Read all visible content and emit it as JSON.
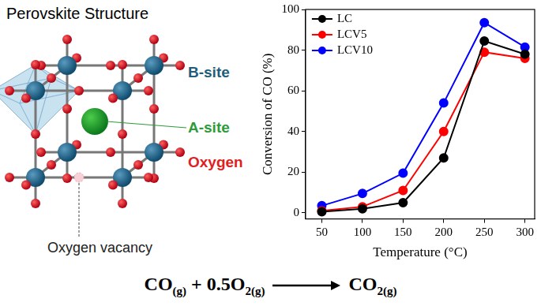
{
  "chart_data": {
    "type": "line",
    "x_label": "Temperature (°C)",
    "y_label": "Conversion of CO (%)",
    "x": [
      50,
      100,
      150,
      200,
      250,
      300
    ],
    "series": [
      {
        "name": "LC",
        "color": "#000000",
        "values": [
          0.5,
          2,
          5,
          27,
          84.5,
          78
        ]
      },
      {
        "name": "LCV5",
        "color": "#ff0000",
        "values": [
          1,
          3,
          11,
          40,
          79,
          76
        ]
      },
      {
        "name": "LCV10",
        "color": "#0000ff",
        "values": [
          3.5,
          9.5,
          19.5,
          54,
          93.5,
          81.5
        ]
      }
    ],
    "xlim": [
      30,
      312
    ],
    "xticks": [
      50,
      100,
      150,
      200,
      250,
      300
    ],
    "ylim": [
      -3,
      100
    ],
    "yticks": [
      0,
      20,
      40,
      60,
      80,
      100
    ],
    "grid": false,
    "legend": "upper left",
    "marker": "circle",
    "line_style": "solid"
  },
  "diagram": {
    "title": "Perovskite Structure",
    "labels": {
      "b_site": "B-site",
      "a_site": "A-site",
      "oxygen": "Oxygen",
      "oxygen_vacancy": "Oxygen vacancy"
    }
  },
  "equation": {
    "reactants": [
      {
        "text": "CO",
        "sub": "(g)"
      },
      {
        "text": " + 0.5O",
        "sub": "2(g)"
      }
    ],
    "products": [
      {
        "text": "CO",
        "sub": "2(g)"
      }
    ]
  }
}
